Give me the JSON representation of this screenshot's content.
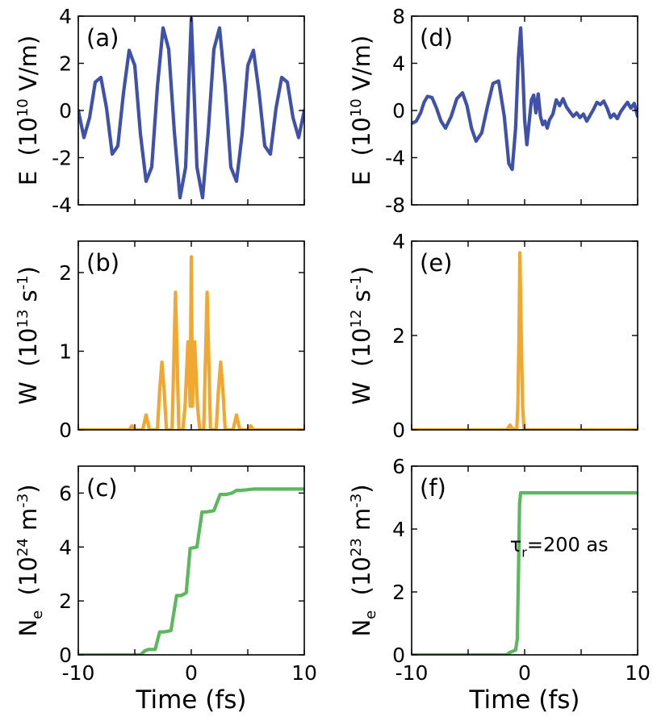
{
  "colors": {
    "field": "#3f51a8",
    "rate": "#f0a830",
    "density": "#5cb85c"
  },
  "chart_data": [
    {
      "panel": "(a)",
      "type": "line",
      "ylabel": {
        "sym": "E",
        "pre": "(10",
        "exp": "10",
        "post": " V/m)"
      },
      "ylim": [
        -4,
        4
      ],
      "yticks": [
        -4,
        -2,
        0,
        2,
        4
      ],
      "ytick_labels": [
        "-4",
        "-2",
        "0",
        "2",
        "4"
      ],
      "xlim": [
        -10,
        10
      ],
      "series": [
        {
          "color_key": "field",
          "x": [
            -10,
            -9.5,
            -9,
            -8.5,
            -8,
            -7.5,
            -7,
            -6.5,
            -6,
            -5.5,
            -5,
            -4.5,
            -4,
            -3.5,
            -3,
            -2.5,
            -2,
            -1.5,
            -1,
            -0.5,
            0,
            0.5,
            1,
            1.5,
            2,
            2.5,
            3,
            3.5,
            4,
            4.5,
            5,
            5.5,
            6,
            6.5,
            7,
            7.5,
            8,
            8.5,
            9,
            9.5,
            10
          ],
          "y": [
            0,
            -1.15,
            -0.3,
            1.2,
            1.4,
            0.1,
            -1.85,
            -1.5,
            0.75,
            2.55,
            1.9,
            -1.0,
            -3.0,
            -2.4,
            1.0,
            3.5,
            2.6,
            -0.9,
            -3.7,
            -2.4,
            3.9,
            -2.4,
            -3.7,
            -0.9,
            2.6,
            3.5,
            1.0,
            -2.4,
            -3.0,
            -1.0,
            1.9,
            2.55,
            0.75,
            -1.5,
            -1.85,
            0.1,
            1.4,
            1.2,
            -0.3,
            -1.15,
            0
          ]
        }
      ]
    },
    {
      "panel": "(b)",
      "type": "line",
      "ylabel": {
        "sym": "W",
        "pre": "(10",
        "exp": "13",
        "post": " s",
        "exp2": "-1",
        "post2": ")"
      },
      "ylim": [
        0,
        2.4
      ],
      "yticks": [
        0,
        1,
        2
      ],
      "ytick_labels": [
        "0",
        "1",
        "2"
      ],
      "xlim": [
        -10,
        10
      ],
      "series": [
        {
          "color_key": "rate",
          "x": [
            -10,
            -5.5,
            -5.25,
            -5.0,
            -4.75,
            -4.3,
            -4.0,
            -3.7,
            -3.0,
            -2.8,
            -2.6,
            -2.4,
            -2.2,
            -1.7,
            -1.4,
            -1.1,
            -0.75,
            -0.55,
            -0.3,
            -0.1,
            0,
            0.1,
            0.3,
            0.55,
            0.75,
            1.1,
            1.4,
            1.7,
            2.2,
            2.4,
            2.6,
            2.8,
            3.0,
            3.7,
            4.0,
            4.3,
            4.75,
            5.0,
            5.25,
            5.5,
            10
          ],
          "y": [
            0,
            0,
            0.05,
            0,
            0,
            0,
            0.19,
            0,
            0,
            0.5,
            0.86,
            0.5,
            0,
            0,
            1.75,
            0,
            0,
            0.3,
            1.12,
            0.3,
            2.2,
            0.3,
            1.12,
            0.3,
            0,
            0,
            1.75,
            0,
            0,
            0.5,
            0.86,
            0.5,
            0,
            0,
            0.19,
            0,
            0,
            0,
            0.05,
            0,
            0
          ]
        }
      ]
    },
    {
      "panel": "(c)",
      "type": "line",
      "ylabel": {
        "sym": "N",
        "sub": "e",
        "pre": "(10",
        "exp": "24",
        "post": " m",
        "exp2": "-3",
        "post2": ")"
      },
      "ylim": [
        0,
        7
      ],
      "yticks": [
        0,
        2,
        4,
        6
      ],
      "ytick_labels": [
        "0",
        "2",
        "4",
        "6"
      ],
      "xlim": [
        -10,
        10
      ],
      "xticks": [
        -10,
        0,
        10
      ],
      "xtick_labels": [
        "-10",
        "0",
        "10"
      ],
      "xlabel": "Time (fs)",
      "series": [
        {
          "color_key": "density",
          "x": [
            -10,
            -4.5,
            -4.1,
            -3.8,
            -3.2,
            -2.8,
            -2.4,
            -1.8,
            -1.3,
            -0.9,
            -0.45,
            -0.1,
            0.5,
            0.95,
            1.35,
            2.0,
            2.55,
            3.1,
            3.6,
            4.0,
            4.4,
            5.5,
            10
          ],
          "y": [
            0,
            0,
            0.15,
            0.2,
            0.2,
            0.85,
            0.85,
            0.9,
            2.2,
            2.2,
            2.3,
            3.95,
            4.0,
            5.3,
            5.3,
            5.35,
            5.95,
            5.95,
            6.0,
            6.1,
            6.1,
            6.15,
            6.15
          ]
        }
      ]
    },
    {
      "panel": "(d)",
      "type": "line",
      "ylabel": {
        "sym": "E",
        "pre": "(10",
        "exp": "10",
        "post": " V/m)"
      },
      "ylim": [
        -8,
        8
      ],
      "yticks": [
        -8,
        -4,
        0,
        4,
        8
      ],
      "ytick_labels": [
        "-8",
        "-4",
        "0",
        "4",
        "8"
      ],
      "xlim": [
        -10,
        10
      ],
      "series": [
        {
          "color_key": "field",
          "x": [
            -10,
            -9.6,
            -9.2,
            -8.9,
            -8.6,
            -8.2,
            -7.8,
            -7.4,
            -7.0,
            -6.5,
            -6.0,
            -5.5,
            -5.1,
            -4.7,
            -4.3,
            -3.8,
            -3.3,
            -2.8,
            -2.3,
            -1.8,
            -1.4,
            -1.1,
            -0.8,
            -0.55,
            -0.35,
            -0.15,
            0,
            0.2,
            0.4,
            0.6,
            0.8,
            1.0,
            1.2,
            1.4,
            1.6,
            1.8,
            2.0,
            2.2,
            2.5,
            2.8,
            3.1,
            3.4,
            3.7,
            4.0,
            4.3,
            4.6,
            4.9,
            5.2,
            5.5,
            5.8,
            6.1,
            6.4,
            6.7,
            7.0,
            7.3,
            7.6,
            7.9,
            8.2,
            8.5,
            8.8,
            9.1,
            9.4,
            9.7,
            10
          ],
          "y": [
            -1.1,
            -0.9,
            -0.2,
            0.7,
            1.2,
            1.1,
            0.2,
            -0.9,
            -1.5,
            -0.5,
            1.0,
            1.5,
            0.4,
            -1.5,
            -2.6,
            -1.9,
            0.3,
            2.3,
            2.5,
            -0.5,
            -4.5,
            -5.0,
            -1.5,
            4.5,
            7.0,
            3.0,
            -0.8,
            -2.9,
            -1.0,
            0.9,
            1.3,
            -0.2,
            1.4,
            -0.5,
            -1.2,
            -0.9,
            -1.5,
            -0.8,
            -0.3,
            0.9,
            0.4,
            1.0,
            0.3,
            -0.1,
            -0.5,
            -0.2,
            -0.6,
            -0.3,
            -0.9,
            -0.4,
            0.1,
            0.7,
            0.5,
            0.8,
            0.2,
            -0.6,
            -0.3,
            -0.7,
            -0.1,
            0.3,
            0.7,
            0.2,
            0.6,
            -0.5
          ]
        }
      ]
    },
    {
      "panel": "(e)",
      "type": "line",
      "ylabel": {
        "sym": "W",
        "pre": "(10",
        "exp": "12",
        "post": " s",
        "exp2": "-1",
        "post2": ")"
      },
      "ylim": [
        0,
        4
      ],
      "yticks": [
        0,
        2,
        4
      ],
      "ytick_labels": [
        "0",
        "2",
        "4"
      ],
      "xlim": [
        -10,
        10
      ],
      "series": [
        {
          "color_key": "rate",
          "x": [
            -10,
            -1.6,
            -1.45,
            -1.3,
            -1.15,
            -0.85,
            -0.7,
            -0.6,
            -0.5,
            -0.42,
            -0.3,
            -0.18,
            -0.05,
            10
          ],
          "y": [
            0,
            0,
            0.04,
            0.1,
            0.04,
            0,
            0,
            0.5,
            2.0,
            3.75,
            2.0,
            0.5,
            0,
            0
          ]
        }
      ]
    },
    {
      "panel": "(f)",
      "type": "line",
      "ylabel": {
        "sym": "N",
        "sub": "e",
        "pre": "(10",
        "exp": "23",
        "post": " m",
        "exp2": "-3",
        "post2": ")"
      },
      "ylim": [
        0,
        6
      ],
      "yticks": [
        0,
        2,
        4,
        6
      ],
      "ytick_labels": [
        "0",
        "2",
        "4",
        "6"
      ],
      "xlim": [
        -10,
        10
      ],
      "xticks": [
        -10,
        0,
        10
      ],
      "xtick_labels": [
        "-10",
        "0",
        "10"
      ],
      "xlabel": "Time (fs)",
      "annotation": {
        "sym": "τ",
        "sub": "r",
        "text": "=200 as",
        "x": -1.3,
        "y": 3.3
      },
      "series": [
        {
          "color_key": "density",
          "x": [
            -10,
            -1.6,
            -1.3,
            -1.0,
            -0.8,
            -0.65,
            -0.55,
            -0.45,
            -0.35,
            10
          ],
          "y": [
            0,
            0,
            0.08,
            0.12,
            0.15,
            0.5,
            2.5,
            4.8,
            5.15,
            5.15
          ]
        }
      ]
    }
  ]
}
